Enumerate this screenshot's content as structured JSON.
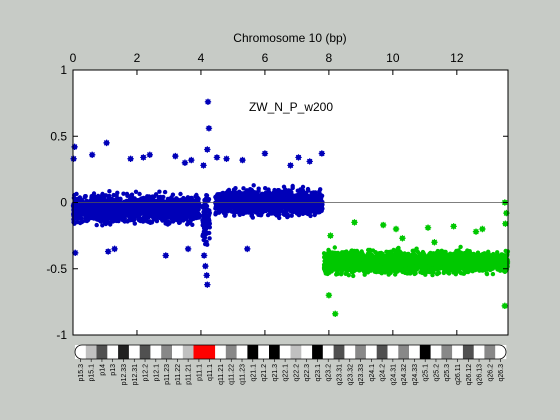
{
  "chart_data": {
    "type": "scatter",
    "title": "Chromosome 10 (bp)",
    "annotation": "ZW_N_P_w200",
    "xlim": [
      0,
      13.6
    ],
    "ylim": [
      -1,
      1
    ],
    "x_ticks": [
      0,
      2,
      4,
      6,
      8,
      10,
      12
    ],
    "y_ticks": [
      -1,
      -0.5,
      0,
      0.5,
      1
    ],
    "y_tick_labels": [
      "-1",
      "-0.5",
      "0",
      "0.5",
      "1"
    ],
    "reference_line_y": 0,
    "grid": false,
    "background": "#ffffff",
    "series": [
      {
        "color": "#0000b8",
        "segments": [
          {
            "x": [
              0.0,
              3.95
            ],
            "center": -0.05,
            "spread": 0.16
          },
          {
            "x": [
              4.05,
              4.28
            ],
            "center": -0.12,
            "spread": 0.3
          },
          {
            "x": [
              4.45,
              7.8
            ],
            "center": 0.0,
            "spread": 0.15
          }
        ],
        "outliers": [
          [
            0.05,
            0.42
          ],
          [
            0.02,
            0.33
          ],
          [
            0.07,
            -0.38
          ],
          [
            1.05,
            0.45
          ],
          [
            0.6,
            0.36
          ],
          [
            1.1,
            -0.37
          ],
          [
            1.3,
            -0.35
          ],
          [
            1.8,
            0.33
          ],
          [
            2.2,
            0.34
          ],
          [
            2.4,
            0.36
          ],
          [
            2.9,
            -0.4
          ],
          [
            3.2,
            0.35
          ],
          [
            3.5,
            0.3
          ],
          [
            3.6,
            -0.35
          ],
          [
            3.7,
            0.32
          ],
          [
            4.08,
            0.28
          ],
          [
            4.1,
            -0.4
          ],
          [
            4.14,
            -0.48
          ],
          [
            4.18,
            -0.55
          ],
          [
            4.2,
            -0.62
          ],
          [
            4.22,
            0.76
          ],
          [
            4.25,
            0.56
          ],
          [
            4.2,
            0.4
          ],
          [
            4.5,
            0.34
          ],
          [
            4.8,
            0.33
          ],
          [
            5.3,
            0.32
          ],
          [
            5.45,
            -0.35
          ],
          [
            6.0,
            0.37
          ],
          [
            6.8,
            0.28
          ],
          [
            7.05,
            0.34
          ],
          [
            7.4,
            0.31
          ],
          [
            7.78,
            0.37
          ]
        ]
      },
      {
        "color": "#00c800",
        "segments": [
          {
            "x": [
              7.85,
              13.6
            ],
            "center": -0.45,
            "spread": 0.13
          }
        ],
        "outliers": [
          [
            8.2,
            -0.84
          ],
          [
            8.8,
            -0.15
          ],
          [
            9.7,
            -0.17
          ],
          [
            10.1,
            -0.2
          ],
          [
            10.3,
            -0.27
          ],
          [
            11.1,
            -0.19
          ],
          [
            11.3,
            -0.3
          ],
          [
            11.9,
            -0.18
          ],
          [
            12.6,
            -0.22
          ],
          [
            12.8,
            -0.2
          ],
          [
            13.5,
            0.0
          ],
          [
            13.55,
            -0.08
          ],
          [
            13.52,
            -0.16
          ],
          [
            13.5,
            -0.78
          ],
          [
            8.0,
            -0.7
          ],
          [
            8.05,
            -0.25
          ]
        ]
      }
    ]
  },
  "ideogram": {
    "band_labels": [
      "p15.3",
      "p15.1",
      "p14",
      "p13",
      "p12.33",
      "p12.31",
      "p12.2",
      "p12.1",
      "p11.23",
      "p11.22",
      "p11.21",
      "p11.1",
      "q11.1",
      "q11.21",
      "q11.22",
      "q11.23",
      "q21.1",
      "q21.2",
      "q21.3",
      "q22.1",
      "q22.2",
      "q22.3",
      "q23.1",
      "q23.2",
      "q23.31",
      "q23.32",
      "q23.33",
      "q24.1",
      "q24.2",
      "q24.31",
      "q24.32",
      "q24.33",
      "q25.1",
      "q25.2",
      "q25.3",
      "q26.11",
      "q26.12",
      "q26.13",
      "q26.2",
      "q26.3"
    ],
    "band_colors": [
      "#ffffff",
      "#c0c0c0",
      "#505050",
      "#ffffff",
      "#202020",
      "#ffffff",
      "#505050",
      "#ffffff",
      "#888888",
      "#ffffff",
      "#c0c0c0",
      "#ff0000",
      "#ff0000",
      "#ffffff",
      "#888888",
      "#ffffff",
      "#000000",
      "#ffffff",
      "#000000",
      "#ffffff",
      "#c0c0c0",
      "#ffffff",
      "#000000",
      "#ffffff",
      "#505050",
      "#ffffff",
      "#888888",
      "#ffffff",
      "#505050",
      "#ffffff",
      "#888888",
      "#ffffff",
      "#000000",
      "#ffffff",
      "#888888",
      "#ffffff",
      "#505050",
      "#ffffff",
      "#888888",
      "#ffffff"
    ]
  }
}
